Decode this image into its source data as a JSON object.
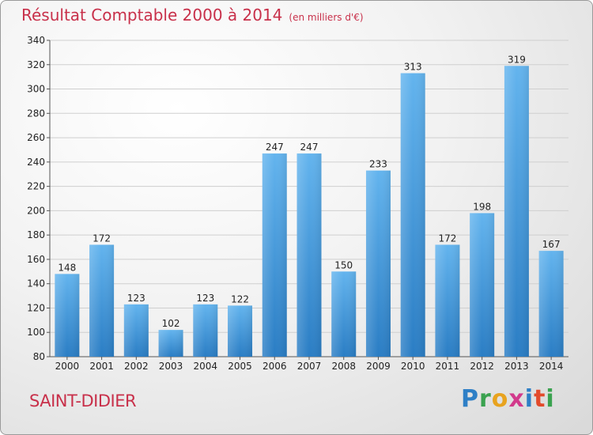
{
  "header": {
    "title": "Résultat Comptable 2000 à 2014",
    "unit": "(en milliers d'€)"
  },
  "footer": {
    "town": "SAINT-DIDIER",
    "logo_letters": [
      "P",
      "r",
      "o",
      "x",
      "i",
      "t",
      "i"
    ],
    "logo_colors": [
      "#2e7fc6",
      "#3aa24f",
      "#e8a31f",
      "#d23a8c",
      "#2e7fc6",
      "#e24a2b",
      "#3aa24f"
    ]
  },
  "colors": {
    "bar_light": "#5fb0ea",
    "bar_dark": "#2a7dc4",
    "title": "#c8304a"
  },
  "chart_data": {
    "type": "bar",
    "title": "Résultat Comptable 2000 à 2014",
    "subtitle": "(en milliers d'€)",
    "xlabel": "",
    "ylabel": "",
    "categories": [
      "2000",
      "2001",
      "2002",
      "2003",
      "2004",
      "2005",
      "2006",
      "2007",
      "2008",
      "2009",
      "2010",
      "2011",
      "2012",
      "2013",
      "2014"
    ],
    "values": [
      148,
      172,
      123,
      102,
      123,
      122,
      247,
      247,
      150,
      233,
      313,
      172,
      198,
      319,
      167
    ],
    "ylim": [
      80,
      340
    ],
    "yticks": [
      80,
      100,
      120,
      140,
      160,
      180,
      200,
      220,
      240,
      260,
      280,
      300,
      320,
      340
    ],
    "grid": true,
    "legend": "none"
  }
}
